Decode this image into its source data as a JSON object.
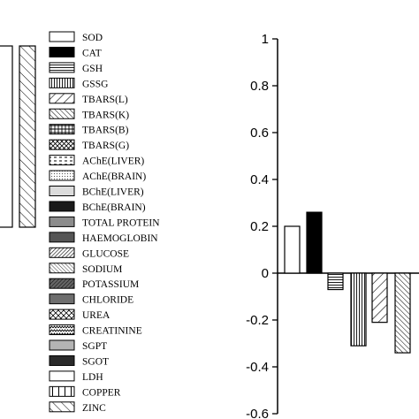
{
  "chart_data": {
    "type": "bar",
    "title": "",
    "xlabel": "",
    "ylabel": "",
    "ylim": [
      -0.6,
      1
    ],
    "yticks": [
      "1",
      "0.8",
      "0.6",
      "0.4",
      "0.2",
      "0",
      "-0.2",
      "-0.4",
      "-0.6"
    ],
    "legend_position": "left",
    "series": [
      {
        "name": "SOD",
        "value": 0.2,
        "fill": "white",
        "pattern": "none"
      },
      {
        "name": "CAT",
        "value": 0.26,
        "fill": "black",
        "pattern": "solid"
      },
      {
        "name": "GSH",
        "value": -0.07,
        "fill": "white",
        "pattern": "hlines"
      },
      {
        "name": "GSSG",
        "value": -0.31,
        "fill": "white",
        "pattern": "vlines"
      },
      {
        "name": "TBARS(L)",
        "value": -0.21,
        "fill": "white",
        "pattern": "diag-wide"
      },
      {
        "name": "TBARS(K)",
        "value": -0.34,
        "fill": "white",
        "pattern": "diag"
      },
      {
        "name": "TBARS(B)",
        "pattern": "grid"
      },
      {
        "name": "TBARS(G)",
        "pattern": "crosshatch"
      },
      {
        "name": "AChE(LIVER)",
        "pattern": "dashes"
      },
      {
        "name": "AChE(BRAIN)",
        "pattern": "dots"
      },
      {
        "name": "BChE(LIVER)",
        "pattern": "light-gray"
      },
      {
        "name": "BChE(BRAIN)",
        "pattern": "dark"
      },
      {
        "name": "TOTAL PROTEIN",
        "pattern": "gray"
      },
      {
        "name": "HAEMOGLOBIN",
        "pattern": "dark-gray"
      },
      {
        "name": "GLUCOSE",
        "pattern": "dense-diag"
      },
      {
        "name": "SODIUM",
        "pattern": "fine-diag"
      },
      {
        "name": "POTASSIUM",
        "pattern": "dark-diag"
      },
      {
        "name": "CHLORIDE",
        "pattern": "mid-gray"
      },
      {
        "name": "UREA",
        "pattern": "weave"
      },
      {
        "name": "CREATININE",
        "pattern": "zigzag"
      },
      {
        "name": "SGPT",
        "pattern": "light-solid"
      },
      {
        "name": "SGOT",
        "pattern": "near-black"
      },
      {
        "name": "LDH",
        "pattern": "none"
      },
      {
        "name": "COPPER",
        "pattern": "vbars-wide"
      },
      {
        "name": "ZINC",
        "pattern": "back-diag"
      }
    ],
    "left_partial_bars": [
      {
        "pattern": "none"
      },
      {
        "pattern": "back-diag"
      }
    ]
  }
}
